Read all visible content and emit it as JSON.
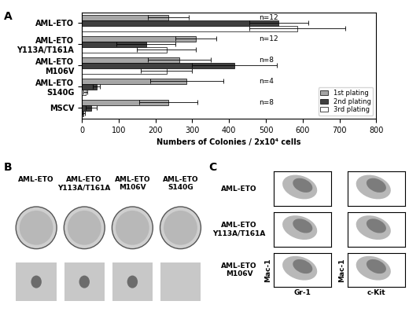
{
  "chart_data": {
    "type": "bar",
    "orientation": "horizontal",
    "x_label": "Numbers of Colonies / 2x10⁴ cells",
    "categories": [
      "AML-ETO",
      "AML-ETO Y113A/T161A",
      "AML-ETO M106V",
      "AML-ETO S140G",
      "MSCV"
    ],
    "series": [
      {
        "name": "1st plating",
        "color": "#a6a6a6",
        "values": [
          235,
          310,
          265,
          285,
          235
        ],
        "errors": [
          55,
          55,
          85,
          100,
          80
        ]
      },
      {
        "name": "2nd plating",
        "color": "#404040",
        "values": [
          535,
          175,
          415,
          40,
          25
        ],
        "errors": [
          80,
          80,
          115,
          10,
          15
        ]
      },
      {
        "name": "3rd plating",
        "color": "#ffffff",
        "values": [
          585,
          230,
          230,
          10,
          5
        ],
        "errors": [
          130,
          80,
          70,
          5,
          3
        ]
      }
    ],
    "annotations": [
      "n=12",
      "n=12",
      "n=8",
      "n=4",
      "n=8"
    ],
    "xlim": [
      0,
      800
    ],
    "xticks": [
      0,
      100,
      200,
      300,
      400,
      500,
      600,
      700,
      800
    ],
    "legend": "lower right",
    "grid": false
  },
  "panel_labels": [
    "A",
    "B",
    "C"
  ],
  "colony_images": {
    "labels": [
      "AML-ETO",
      "AML-ETO Y113A/T161A",
      "AML-ETO M106V",
      "AML-ETO S140G"
    ]
  },
  "flow_cytometry": {
    "row_labels": [
      "AML-ETO",
      "AML-ETO Y113A/T161A",
      "AML-ETO M106V"
    ],
    "x_labels": [
      "Gr-1",
      "c-Kit"
    ],
    "y_label": "Mac-1",
    "tick_labels": false
  }
}
